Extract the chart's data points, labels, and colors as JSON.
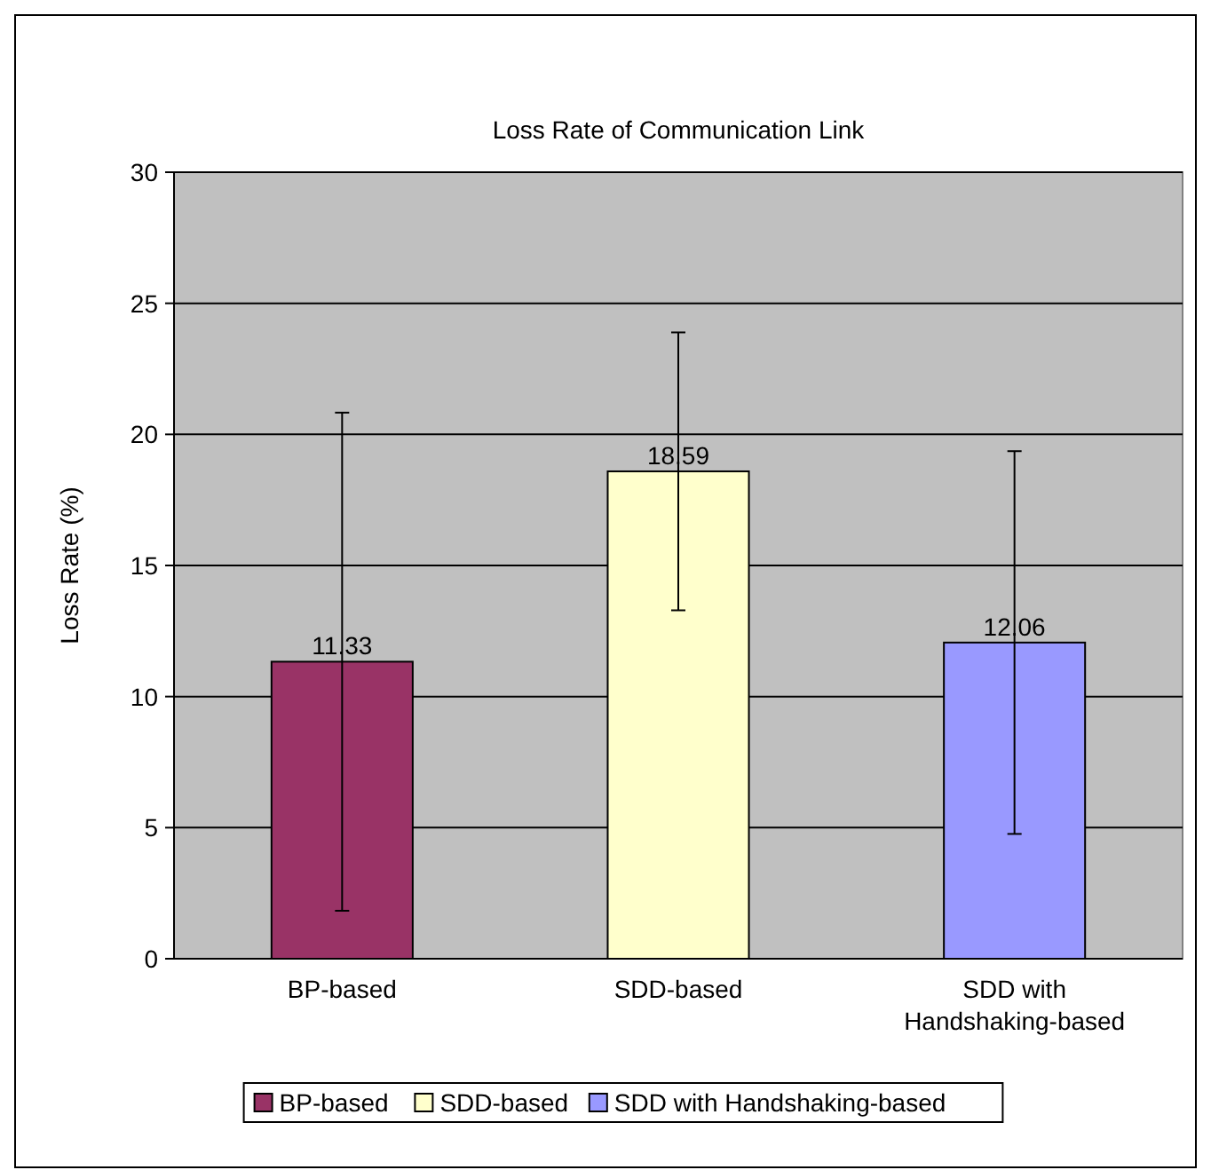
{
  "chart_data": {
    "type": "bar",
    "title": "Loss Rate of Communication Link",
    "ylabel": "Loss Rate (%)",
    "categories": [
      "BP-based",
      "SDD-based",
      "SDD with Handshaking-based"
    ],
    "series": [
      {
        "name": "BP-based",
        "color": "#993366",
        "values": [
          11.33,
          null,
          null
        ],
        "errors": [
          9.5,
          null,
          null
        ]
      },
      {
        "name": "SDD-based",
        "color": "#ffffcc",
        "values": [
          null,
          18.59,
          null
        ],
        "errors": [
          null,
          5.3,
          null
        ]
      },
      {
        "name": "SDD with Handshaking-based",
        "color": "#9999ff",
        "values": [
          null,
          null,
          12.06
        ],
        "errors": [
          null,
          null,
          7.3
        ]
      }
    ],
    "ylim": [
      0,
      30
    ],
    "yticks": [
      0,
      5,
      10,
      15,
      20,
      25,
      30
    ],
    "grid": "y",
    "legend": "bottom",
    "data_labels": true
  }
}
